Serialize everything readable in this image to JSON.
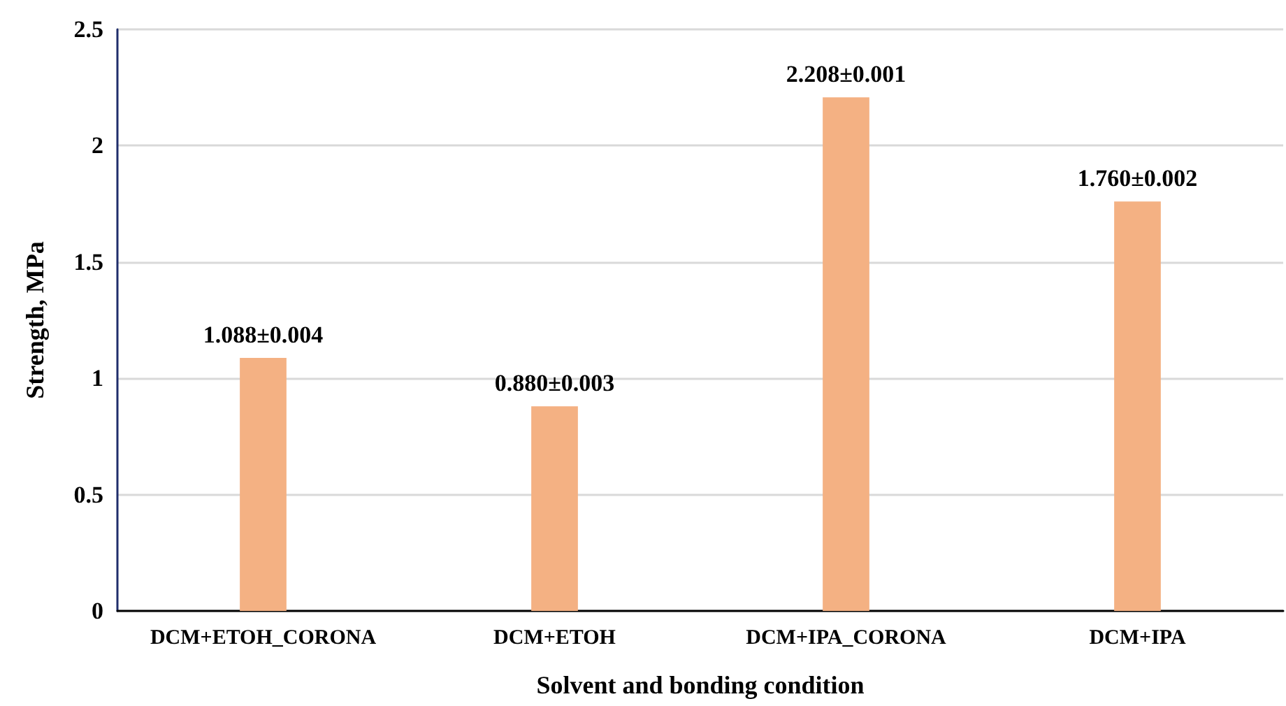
{
  "chart_data": {
    "type": "bar",
    "xlabel": "Solvent and bonding condition",
    "ylabel": "Strength, MPa",
    "categories": [
      "DCM+ETOH_CORONA",
      "DCM+ETOH",
      "DCM+IPA_CORONA",
      "DCM+IPA"
    ],
    "values": [
      1.088,
      0.88,
      2.208,
      1.76
    ],
    "value_labels": [
      "1.088±0.004",
      "0.880±0.003",
      "2.208±0.001",
      "1.760±0.002"
    ],
    "color": "#f4b183",
    "ylim": [
      0,
      2.5
    ],
    "yticks": [
      0,
      0.5,
      1,
      1.5,
      2,
      2.5
    ],
    "grid": "y"
  }
}
